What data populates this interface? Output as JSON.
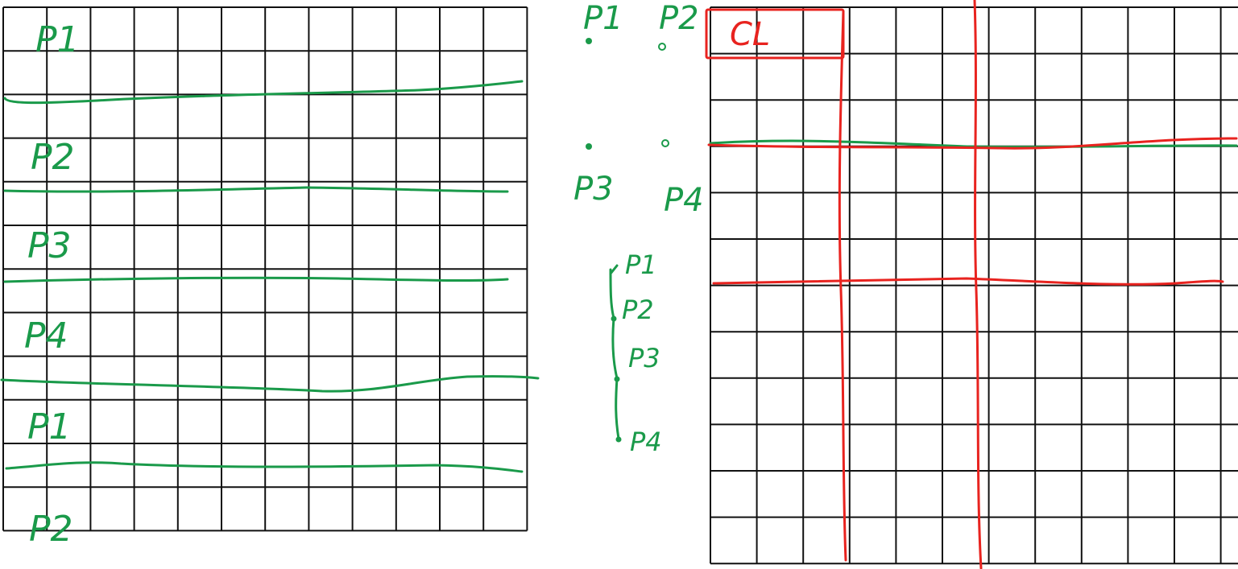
{
  "ink_colors": {
    "green": "#1a9a4a",
    "red": "#e8231f",
    "grid": "#111111"
  },
  "left_panel": {
    "strip_labels": [
      "P1",
      "P2",
      "P3",
      "P4",
      "P1",
      "P2"
    ]
  },
  "middle_notes": {
    "top_points": [
      "P1",
      "P2",
      "P3",
      "P4"
    ],
    "chain_points": [
      "P1",
      "P2",
      "P3",
      "P4"
    ]
  },
  "right_panel": {
    "box_label": "CL"
  }
}
